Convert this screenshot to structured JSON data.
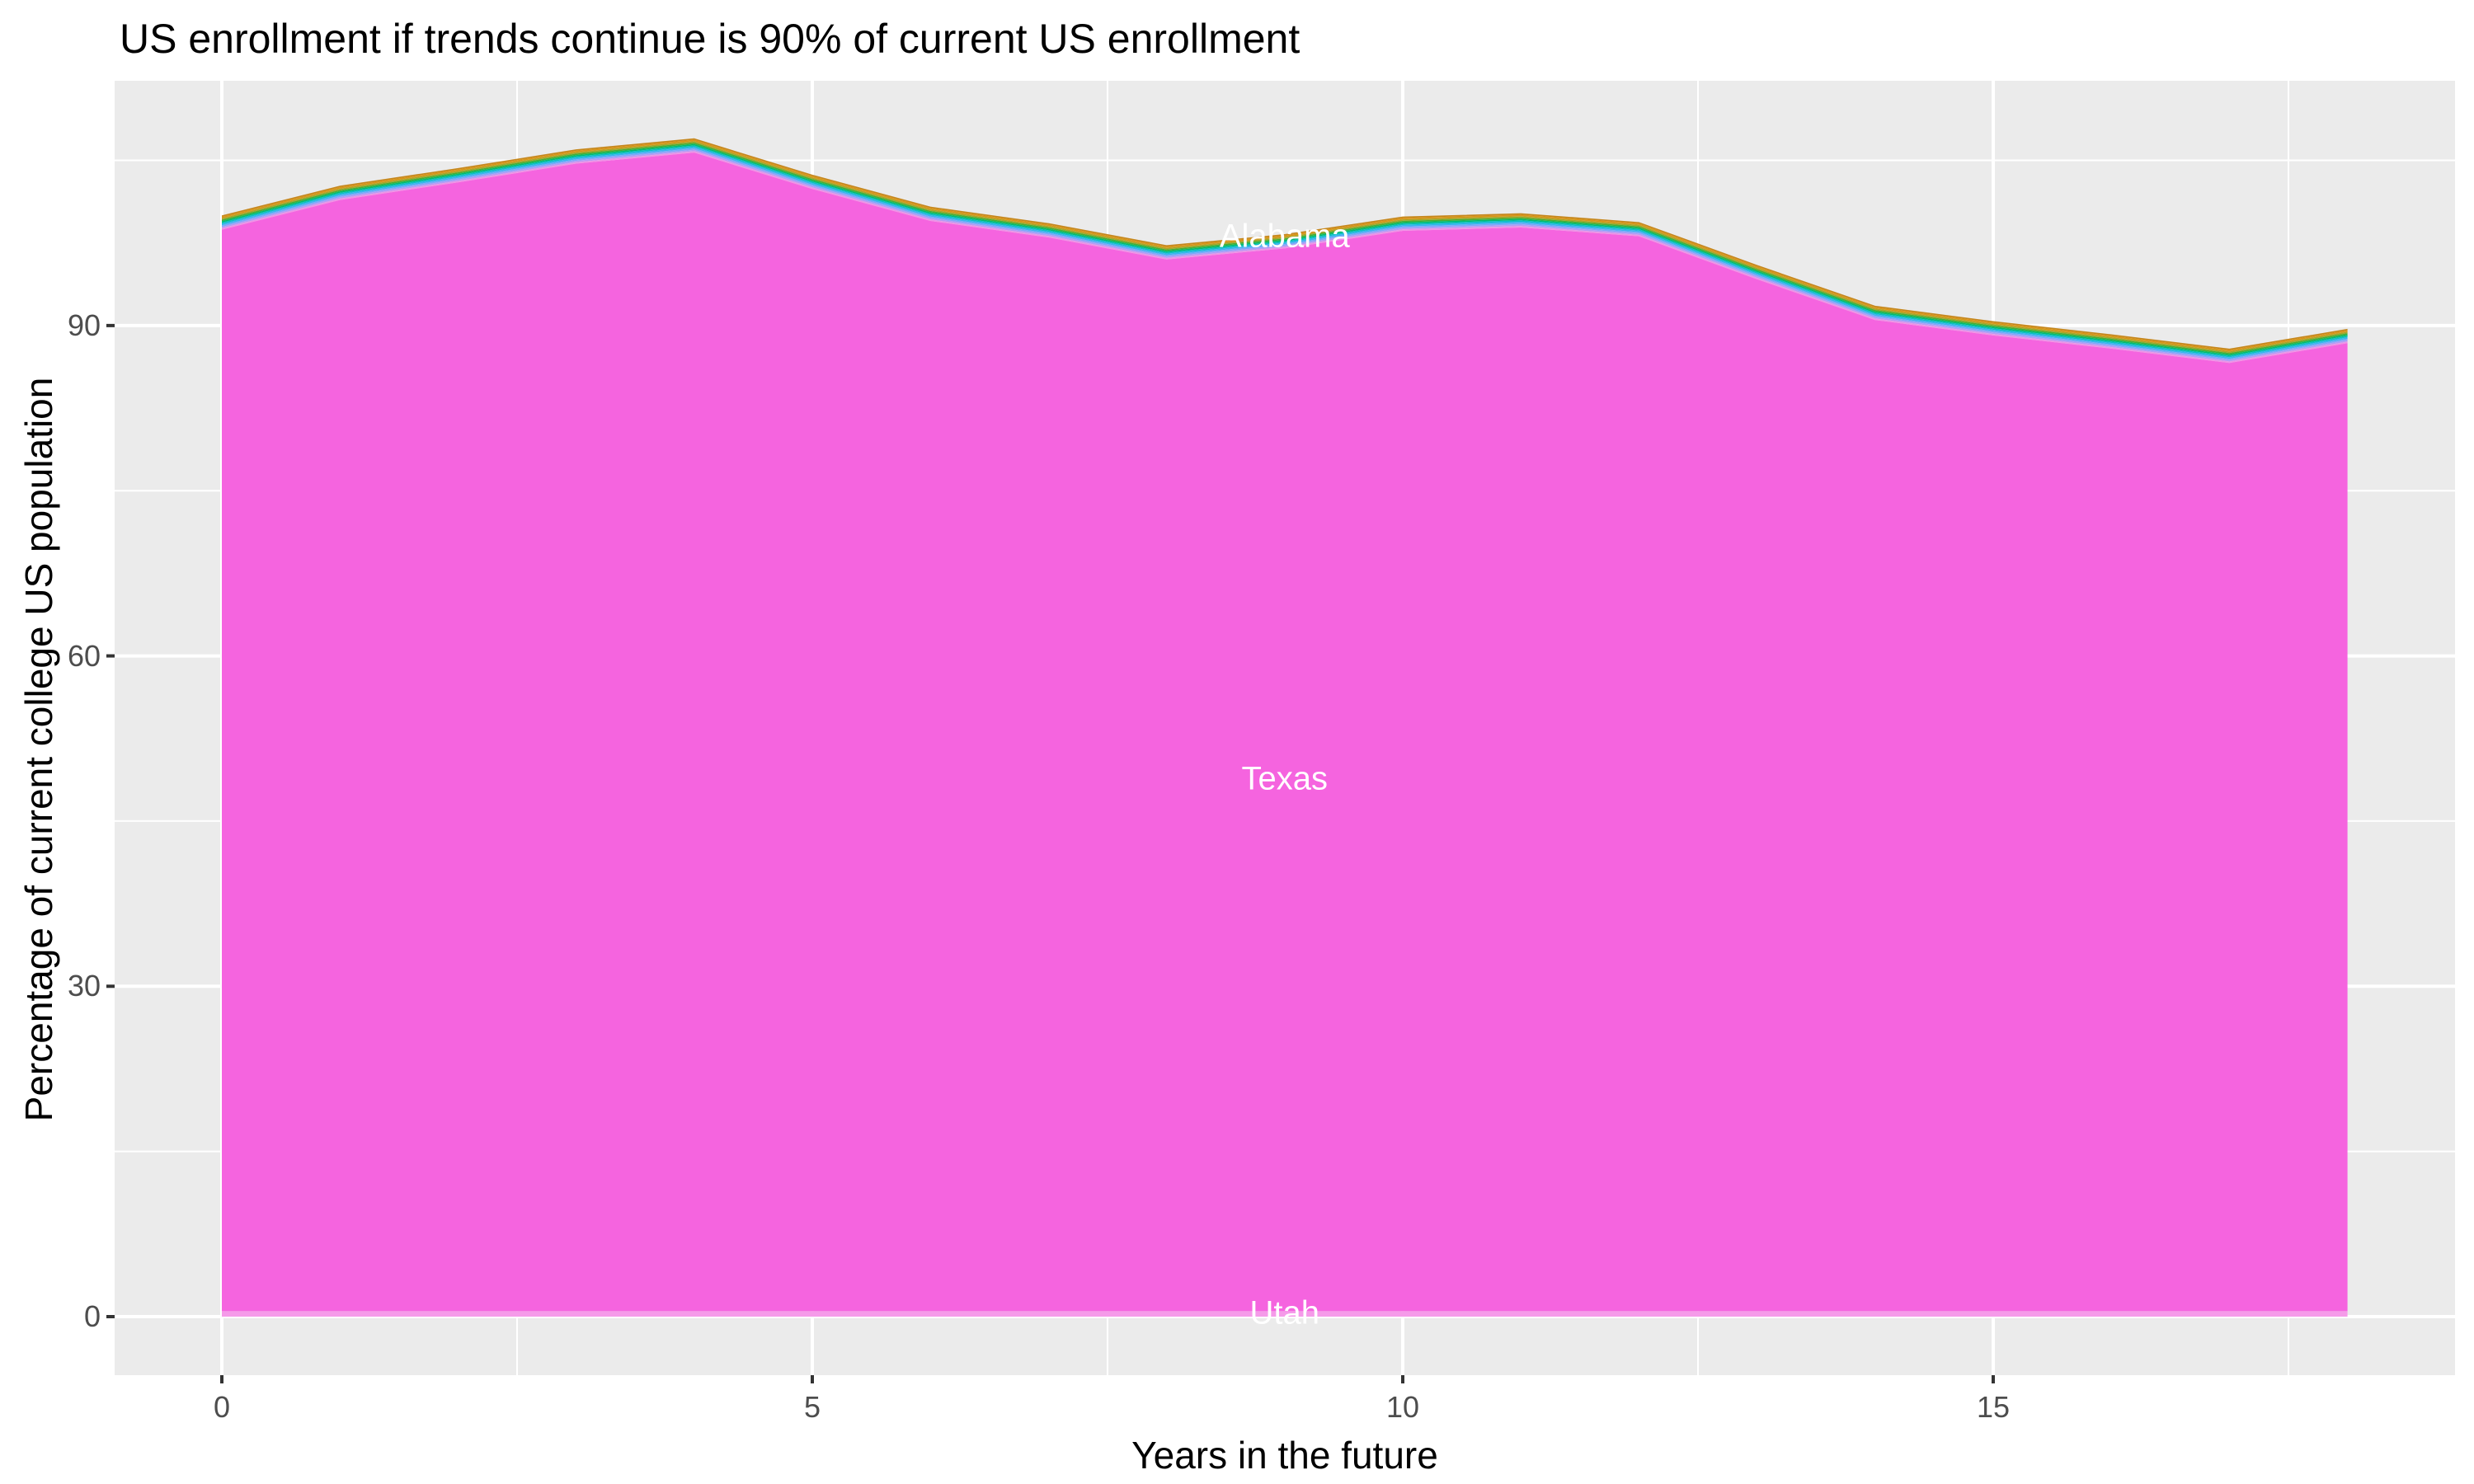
{
  "title": "US enrollment if trends continue is 90% of current US enrollment",
  "chart_data": {
    "type": "area",
    "stacked": true,
    "title": "US enrollment if trends continue is 90% of current US enrollment",
    "xlabel": "Years in the future",
    "ylabel": "Percentage of current college US population",
    "x": [
      0,
      1,
      2,
      3,
      4,
      5,
      6,
      7,
      8,
      9,
      10,
      11,
      12,
      13,
      14,
      15,
      16,
      17,
      18
    ],
    "stack_top_total": [
      100.0,
      102.7,
      104.3,
      106.0,
      107.0,
      103.7,
      100.8,
      99.3,
      97.3,
      98.3,
      99.9,
      100.2,
      99.4,
      95.5,
      91.8,
      90.4,
      89.2,
      87.9,
      89.7
    ],
    "dominant_series": "Texas",
    "visible_state_labels": [
      {
        "text": "Alabama",
        "year": 9.0,
        "value": 98.1
      },
      {
        "text": "Texas",
        "year": 9.0,
        "value": 48.8
      },
      {
        "text": "Utah",
        "year": 9.0,
        "value": 0.3
      }
    ],
    "top_sliver_band_thickness": 1.3,
    "bottom_sliver_band_thickness": 0.5,
    "x_ticks": [
      {
        "pos": 0,
        "label": "0"
      },
      {
        "pos": 5,
        "label": "5"
      },
      {
        "pos": 10,
        "label": "10"
      },
      {
        "pos": 15,
        "label": "15"
      }
    ],
    "y_ticks": [
      {
        "pos": 0,
        "label": "0"
      },
      {
        "pos": 30,
        "label": "30"
      },
      {
        "pos": 60,
        "label": "60"
      },
      {
        "pos": 90,
        "label": "90"
      }
    ],
    "x_minor_gridlines": [
      2.5,
      7.5,
      12.5,
      17.5
    ],
    "y_minor_gridlines": [
      15,
      45,
      75,
      105
    ],
    "xlim": [
      -0.9,
      18.9
    ],
    "ylim": [
      -5.3,
      112.2
    ],
    "grid": "on",
    "legend_position": "none",
    "colors": {
      "panel_background": "#EBEBEB",
      "gridline": "#FFFFFF",
      "tick_mark": "#333333",
      "tick_label_text": "#4D4D4D",
      "axis_title_text": "#000000",
      "title_text": "#000000",
      "state_label_text": "#FFFFFF",
      "texas_fill": "#F564DF",
      "bottom_sliver_fill": "#F59BE9",
      "top_sliver_fills_top_to_bottom": [
        "#C5861B",
        "#DA9416",
        "#A9A428",
        "#45AE34",
        "#00BB70",
        "#0ABFC5",
        "#3BB3F0",
        "#7FA7FA",
        "#B79BF4",
        "#EF93E5"
      ]
    }
  }
}
